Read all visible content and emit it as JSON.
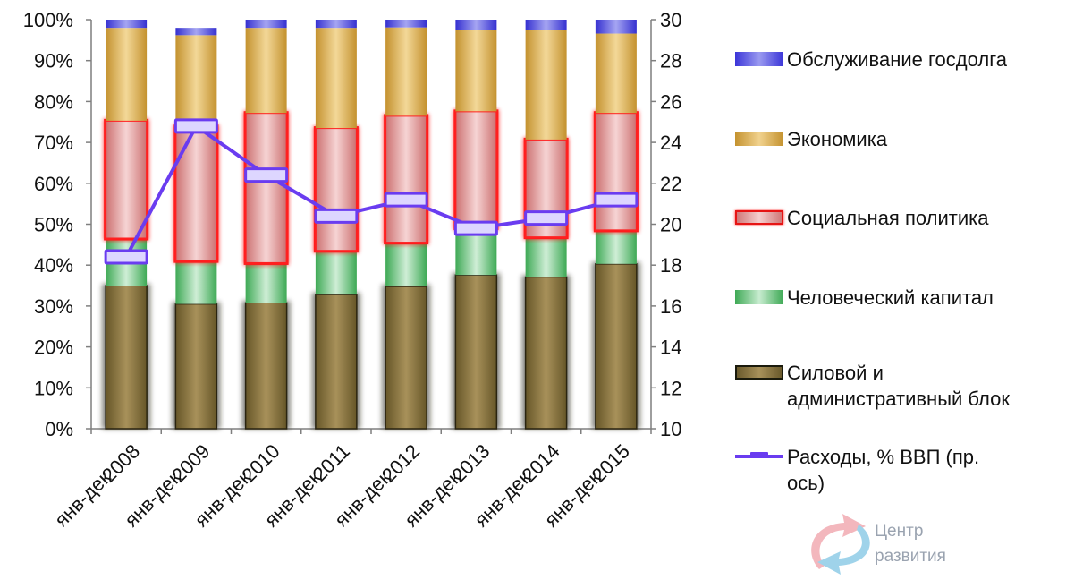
{
  "chart_data": {
    "type": "bar",
    "stacked": true,
    "percent_stacked": true,
    "categories": [
      "янв-дек 2008",
      "янв-дек 2009",
      "янв-дек 2010",
      "янв-дек 2011",
      "янв-дек 2012",
      "янв-дек 2013",
      "янв-дек 2014",
      "янв-дек 2015"
    ],
    "category_lines": [
      [
        "янв-дек",
        "2008"
      ],
      [
        "янв-дек",
        "2009"
      ],
      [
        "янв-дек",
        "2010"
      ],
      [
        "янв-дек",
        "2011"
      ],
      [
        "янв-дек",
        "2012"
      ],
      [
        "янв-дек",
        "2013"
      ],
      [
        "янв-дек",
        "2014"
      ],
      [
        "янв-дек",
        "2015"
      ]
    ],
    "series": [
      {
        "name": "Силовой и\nадминистративный  блок",
        "key": "power",
        "axis": "left",
        "values": [
          35.0,
          30.5,
          30.8,
          32.8,
          34.8,
          37.6,
          37.1,
          40.3
        ]
      },
      {
        "name": "Человеческий капитал",
        "key": "human",
        "axis": "left",
        "values": [
          11.5,
          10.5,
          9.7,
          10.7,
          10.7,
          11.4,
          9.7,
          8.2
        ]
      },
      {
        "name": "Социальная политика",
        "key": "social",
        "axis": "left",
        "values": [
          28.8,
          32.9,
          36.7,
          30.0,
          31.0,
          28.6,
          23.9,
          28.7
        ]
      },
      {
        "name": "Экономика",
        "key": "econ",
        "axis": "left",
        "values": [
          22.7,
          22.3,
          20.8,
          24.5,
          21.6,
          19.9,
          26.7,
          19.4
        ]
      },
      {
        "name": "Обслуживание госдолга",
        "key": "debt",
        "axis": "left",
        "values": [
          2.0,
          1.8,
          2.0,
          2.0,
          1.9,
          2.5,
          2.6,
          3.4
        ]
      },
      {
        "name": "Расходы, % ВВП  (пр.\nось)",
        "key": "line",
        "type": "line",
        "axis": "right",
        "values": [
          18.4,
          24.8,
          22.4,
          20.4,
          21.2,
          19.8,
          20.3,
          21.2
        ]
      }
    ],
    "left_axis": {
      "min": 0,
      "max": 100,
      "step": 10,
      "unit": "%",
      "ticks": [
        "0%",
        "10%",
        "20%",
        "30%",
        "40%",
        "50%",
        "60%",
        "70%",
        "80%",
        "90%",
        "100%"
      ]
    },
    "right_axis": {
      "min": 10,
      "max": 30,
      "step": 2,
      "ticks": [
        "10",
        "12",
        "14",
        "16",
        "18",
        "20",
        "22",
        "24",
        "26",
        "28",
        "30"
      ]
    },
    "legend_position": "right",
    "legend_order": [
      "debt",
      "econ",
      "social",
      "human",
      "power",
      "line"
    ],
    "grid": false,
    "colors": {
      "power": "#8a7640",
      "human": "#6cc77f",
      "social": "#e29a9a",
      "econ": "#ddb65a",
      "debt": "#6a63e0",
      "line": "#6a3cf0",
      "social_glow": "#ff1a1a"
    }
  },
  "logo": {
    "lines": [
      "Центр",
      "развития"
    ]
  }
}
